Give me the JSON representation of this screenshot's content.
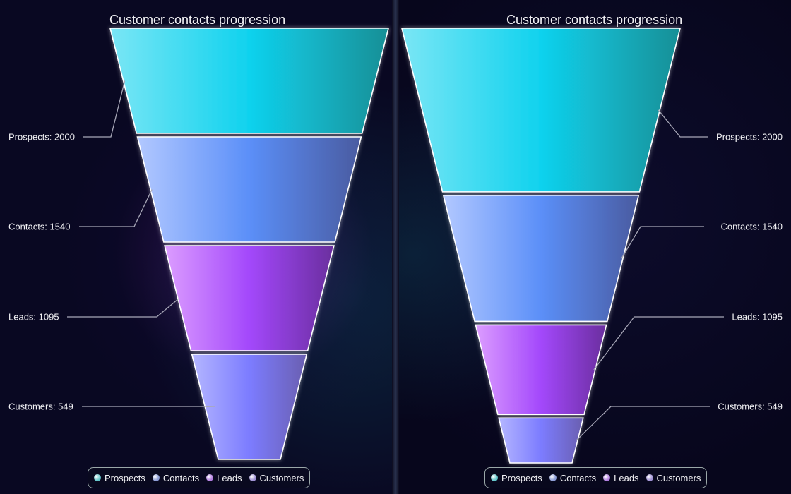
{
  "chart_data": [
    {
      "type": "funnel",
      "title": "Customer contacts progression",
      "neck_mode": "equal-height segments",
      "label_side": "left",
      "categories": [
        "Prospects",
        "Contacts",
        "Leads",
        "Customers"
      ],
      "values": [
        2000,
        1540,
        1095,
        549
      ],
      "data_labels": [
        "Prospects: 2000",
        "Contacts: 1540",
        "Leads: 1095",
        "Customers: 549"
      ],
      "legend": {
        "placement": "bottom-center",
        "entries": [
          "Prospects",
          "Contacts",
          "Leads",
          "Customers"
        ]
      }
    },
    {
      "type": "funnel",
      "title": "Customer contacts progression",
      "neck_mode": "height proportional to value",
      "label_side": "right",
      "categories": [
        "Prospects",
        "Contacts",
        "Leads",
        "Customers"
      ],
      "values": [
        2000,
        1540,
        1095,
        549
      ],
      "data_labels": [
        "Prospects: 2000",
        "Contacts: 1540",
        "Leads: 1095",
        "Customers: 549"
      ],
      "legend": {
        "placement": "bottom-center",
        "entries": [
          "Prospects",
          "Contacts",
          "Leads",
          "Customers"
        ]
      }
    }
  ],
  "colors": {
    "Prospects": [
      "#7ae6f5",
      "#10d2ee",
      "#168f96"
    ],
    "Contacts": [
      "#b2c8ff",
      "#5b8ff8",
      "#4a5ba0"
    ],
    "Leads": [
      "#dc9dff",
      "#a348fb",
      "#6a2e9e"
    ],
    "Customers": [
      "#b4b6ff",
      "#7c7cff",
      "#6a5fb0"
    ],
    "legend_dots": [
      "#5fc4c9",
      "#8a9bd6",
      "#b07be0",
      "#9d8fd4"
    ],
    "outline": "#ffffff",
    "leader_line": "#a8a8b8"
  }
}
